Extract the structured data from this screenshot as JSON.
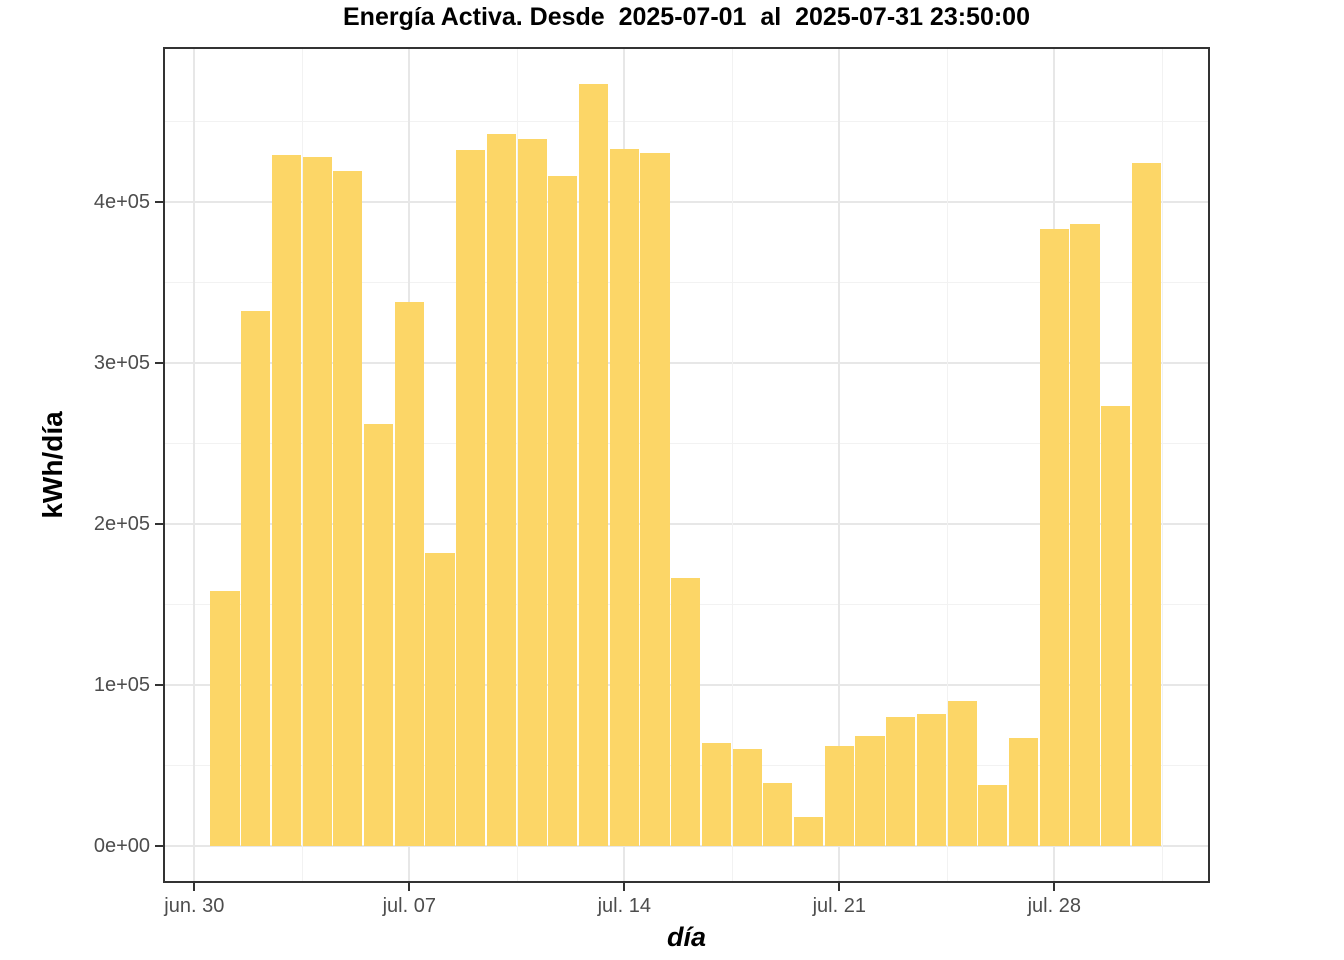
{
  "title": "Energía Activa. Desde  2025-07-01  al  2025-07-31 23:50:00",
  "chart_data": {
    "type": "bar",
    "title": "Energía Activa. Desde  2025-07-01  al  2025-07-31 23:50:00",
    "xlabel": "día",
    "ylabel": "kWh/día",
    "bar_color": "#FCD667",
    "grid": true,
    "legend": false,
    "x": [
      "2025-07-01",
      "2025-07-02",
      "2025-07-03",
      "2025-07-04",
      "2025-07-05",
      "2025-07-06",
      "2025-07-07",
      "2025-07-08",
      "2025-07-09",
      "2025-07-10",
      "2025-07-11",
      "2025-07-12",
      "2025-07-13",
      "2025-07-14",
      "2025-07-15",
      "2025-07-16",
      "2025-07-17",
      "2025-07-18",
      "2025-07-19",
      "2025-07-20",
      "2025-07-21",
      "2025-07-22",
      "2025-07-23",
      "2025-07-24",
      "2025-07-25",
      "2025-07-26",
      "2025-07-27",
      "2025-07-28",
      "2025-07-29",
      "2025-07-30",
      "2025-07-31"
    ],
    "values": [
      158000,
      332000,
      429000,
      428000,
      419000,
      262000,
      338000,
      182000,
      432000,
      442000,
      439000,
      416000,
      473000,
      433000,
      430000,
      166000,
      64000,
      60000,
      39000,
      18000,
      62000,
      68000,
      80000,
      82000,
      90000,
      38000,
      67000,
      383000,
      386000,
      273000,
      424000
    ],
    "ylim": [
      0,
      496000
    ],
    "y_major_ticks": [
      {
        "label": "0e+00",
        "value": 0
      },
      {
        "label": "1e+05",
        "value": 100000
      },
      {
        "label": "2e+05",
        "value": 200000
      },
      {
        "label": "3e+05",
        "value": 300000
      },
      {
        "label": "4e+05",
        "value": 400000
      }
    ],
    "y_minor_values": [
      50000,
      150000,
      250000,
      350000,
      450000
    ],
    "x_major_ticks": [
      {
        "label": "jun. 30",
        "day": 0
      },
      {
        "label": "jul. 07",
        "day": 7
      },
      {
        "label": "jul. 14",
        "day": 14
      },
      {
        "label": "jul. 21",
        "day": 21
      },
      {
        "label": "jul. 28",
        "day": 28
      }
    ],
    "x_minor_days": [
      3.5,
      10.5,
      17.5,
      24.5,
      31.5
    ],
    "colors": {
      "major_grid": "#e7e7e7",
      "minor_grid": "#f2f2f2",
      "panel_border": "#333333",
      "tick_text": "#4d4d4d"
    }
  }
}
